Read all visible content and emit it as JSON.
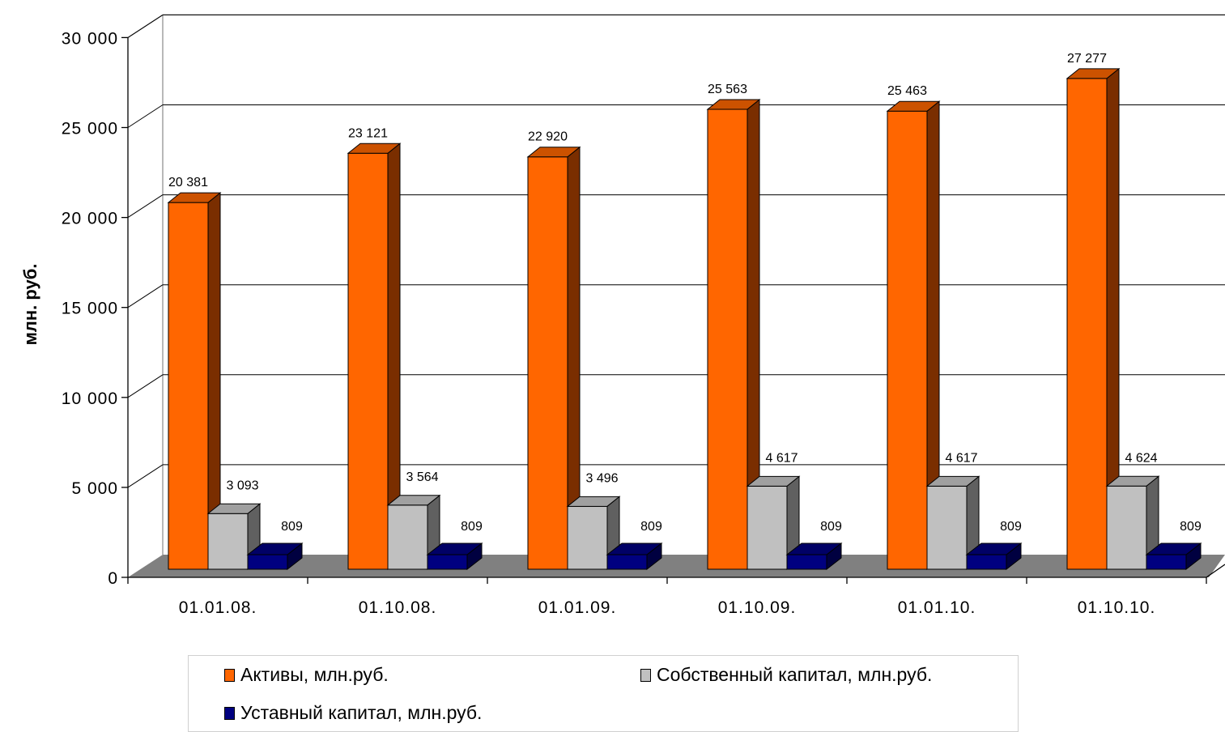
{
  "chart_data": {
    "type": "bar",
    "ylabel": "млн. руб.",
    "xlabel": "",
    "ylim": [
      0,
      30000
    ],
    "yticks": [
      0,
      5000,
      10000,
      15000,
      20000,
      25000,
      30000
    ],
    "ytick_labels": [
      "0",
      "5 000",
      "10 000",
      "15 000",
      "20 000",
      "25 000",
      "30 000"
    ],
    "categories": [
      "01.01.08.",
      "01.10.08.",
      "01.01.09.",
      "01.10.09.",
      "01.01.10.",
      "01.10.10."
    ],
    "series": [
      {
        "name": "Активы, млн.руб.",
        "values": [
          20381,
          23121,
          22920,
          25563,
          25463,
          27277
        ],
        "labels": [
          "20 381",
          "23 121",
          "22 920",
          "25 563",
          "25 463",
          "27 277"
        ],
        "color": "#FF6600",
        "side_color": "#7A2E00",
        "top_color": "#CC5200"
      },
      {
        "name": "Собственный капитал, млн.руб.",
        "values": [
          3093,
          3564,
          3496,
          4617,
          4617,
          4624
        ],
        "labels": [
          "3 093",
          "3 564",
          "3 496",
          "4 617",
          "4 617",
          "4 624"
        ],
        "color": "#C0C0C0",
        "side_color": "#606060",
        "top_color": "#A0A0A0"
      },
      {
        "name": "Уставный капитал, млн.руб.",
        "values": [
          809,
          809,
          809,
          809,
          809,
          809
        ],
        "labels": [
          "809",
          "809",
          "809",
          "809",
          "809",
          "809"
        ],
        "color": "#000080",
        "side_color": "#000040",
        "top_color": "#000066"
      }
    ],
    "grid": true,
    "legend_position": "bottom",
    "floor_color": "#808080"
  }
}
